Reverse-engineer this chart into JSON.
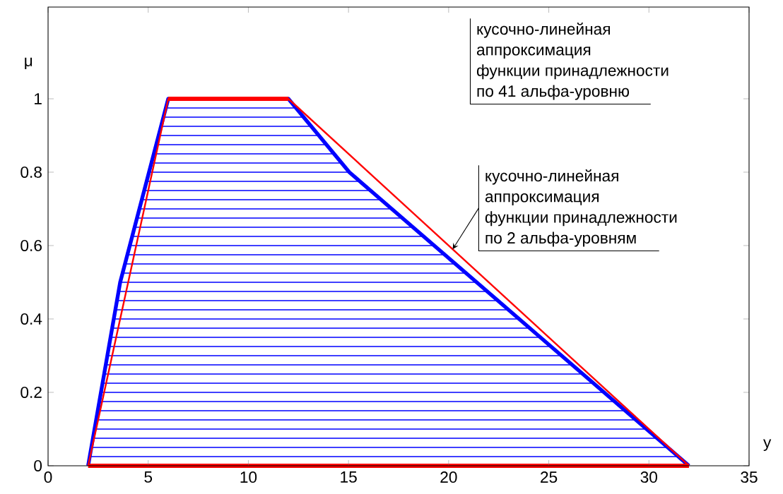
{
  "chart_data": {
    "type": "line",
    "xlabel": "y",
    "ylabel": "μ",
    "xlim": [
      0,
      35
    ],
    "ylim": [
      0,
      1.25
    ],
    "xticks": [
      0,
      5,
      10,
      15,
      20,
      25,
      30,
      35
    ],
    "yticks": [
      0,
      0.2,
      0.4,
      0.6,
      0.8,
      1
    ],
    "series": [
      {
        "color": "#0000ff",
        "x": [
          2.08,
          31.47,
          30.94,
          2.16,
          2.24,
          30.41,
          29.88,
          2.32,
          2.4,
          29.35,
          28.82,
          2.48,
          2.56,
          28.29,
          27.76,
          2.64,
          2.72,
          27.23,
          26.7,
          2.8,
          2.88,
          26.17,
          25.64,
          2.96,
          3.04,
          25.11,
          24.58,
          3.12,
          3.2,
          24.05,
          23.52,
          3.28,
          3.36,
          22.99,
          22.46,
          3.44,
          3.52,
          21.93,
          21.4,
          3.6,
          3.72,
          20.87,
          20.34,
          3.84,
          3.96,
          19.81,
          19.28,
          4.08,
          4.2,
          18.75,
          18.22,
          4.32,
          4.44,
          17.69,
          17.16,
          4.56,
          4.68,
          16.63,
          16.1,
          4.8,
          4.92,
          15.57,
          15.04,
          5.04,
          5.16,
          14.66,
          14.28,
          5.28,
          5.4,
          13.9,
          13.52,
          5.52,
          5.64,
          13.14,
          12.76,
          5.76,
          5.88,
          12.38
        ],
        "values": [
          0.025,
          0.025,
          0.05,
          0.05,
          0.075,
          0.075,
          0.1,
          0.1,
          0.125,
          0.125,
          0.15,
          0.15,
          0.175,
          0.175,
          0.2,
          0.2,
          0.225,
          0.225,
          0.25,
          0.25,
          0.275,
          0.275,
          0.3,
          0.3,
          0.325,
          0.325,
          0.35,
          0.35,
          0.375,
          0.375,
          0.4,
          0.4,
          0.425,
          0.425,
          0.45,
          0.45,
          0.475,
          0.475,
          0.5,
          0.5,
          0.525,
          0.525,
          0.55,
          0.55,
          0.575,
          0.575,
          0.6,
          0.6,
          0.625,
          0.625,
          0.65,
          0.65,
          0.675,
          0.675,
          0.7,
          0.7,
          0.725,
          0.725,
          0.75,
          0.75,
          0.775,
          0.775,
          0.8,
          0.8,
          0.825,
          0.825,
          0.85,
          0.85,
          0.875,
          0.875,
          0.9,
          0.9,
          0.925,
          0.925,
          0.95,
          0.95,
          0.975,
          0.975
        ]
      },
      {
        "color": "#0000ff",
        "x": [
          2,
          2.08,
          2.16,
          2.24,
          2.32,
          2.4,
          2.48,
          2.56,
          2.64,
          2.72,
          2.8,
          2.88,
          2.96,
          3.04,
          3.12,
          3.2,
          3.28,
          3.36,
          3.44,
          3.52,
          3.6,
          3.72,
          3.84,
          3.96,
          4.08,
          4.2,
          4.32,
          4.44,
          4.56,
          4.68,
          4.8,
          4.92,
          5.04,
          5.16,
          5.28,
          5.4,
          5.52,
          5.64,
          5.76,
          5.88,
          6,
          12,
          12.38,
          12.76,
          13.14,
          13.52,
          13.9,
          14.28,
          14.66,
          15.04,
          15.57,
          16.1,
          16.63,
          17.16,
          17.69,
          18.22,
          18.75,
          19.28,
          19.81,
          20.34,
          20.87,
          21.4,
          21.93,
          22.46,
          22.99,
          23.52,
          24.05,
          24.58,
          25.11,
          25.64,
          26.17,
          26.7,
          27.23,
          27.76,
          28.29,
          28.82,
          29.35,
          29.88,
          30.41,
          30.94,
          31.47,
          32
        ],
        "values": [
          0,
          0.025,
          0.05,
          0.075,
          0.1,
          0.125,
          0.15,
          0.175,
          0.2,
          0.225,
          0.25,
          0.275,
          0.3,
          0.325,
          0.35,
          0.375,
          0.4,
          0.425,
          0.45,
          0.475,
          0.5,
          0.525,
          0.55,
          0.575,
          0.6,
          0.625,
          0.65,
          0.675,
          0.7,
          0.725,
          0.75,
          0.775,
          0.8,
          0.825,
          0.85,
          0.875,
          0.9,
          0.925,
          0.95,
          0.975,
          1,
          1,
          0.975,
          0.95,
          0.925,
          0.9,
          0.875,
          0.85,
          0.825,
          0.8,
          0.775,
          0.75,
          0.725,
          0.7,
          0.675,
          0.65,
          0.625,
          0.6,
          0.575,
          0.55,
          0.525,
          0.5,
          0.475,
          0.45,
          0.425,
          0.4,
          0.375,
          0.35,
          0.325,
          0.3,
          0.275,
          0.25,
          0.225,
          0.2,
          0.175,
          0.15,
          0.125,
          0.1,
          0.075,
          0.05,
          0.025,
          0
        ]
      },
      {
        "color": "#ff0000",
        "x": [
          2,
          6,
          12,
          32
        ],
        "values": [
          0,
          1,
          1,
          0
        ]
      },
      {
        "color": "#ff0000",
        "x": [
          2,
          32
        ],
        "values": [
          0,
          0
        ]
      },
      {
        "color": "#ff0000",
        "x": [
          6,
          12
        ],
        "values": [
          1,
          1
        ]
      }
    ],
    "annotations": [
      "кусочно-линейная",
      "аппроксимация",
      "функции принадлежности",
      "по 41 альфа-уровню",
      "кусочно-линейная",
      "аппроксимация",
      "функции принадлежности",
      {
        "text": "по 2 альфа-уровням",
        "x": 20.2,
        "y": 0.59
      }
    ]
  }
}
